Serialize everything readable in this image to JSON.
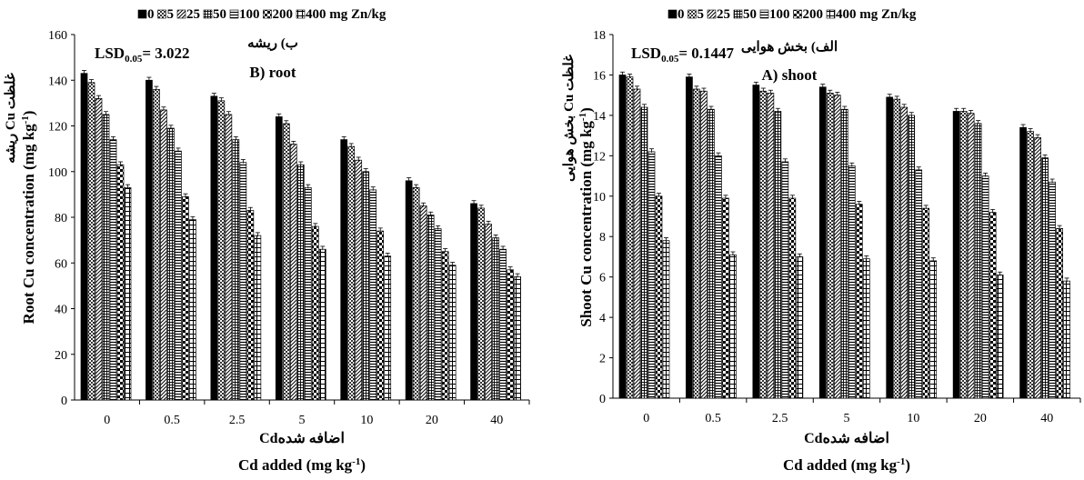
{
  "legend_labels": [
    "0",
    "5",
    "25",
    "50",
    "100",
    "200",
    "400 mg Zn/kg"
  ],
  "chart_data": [
    {
      "type": "bar",
      "panel_title_fa": "ب) ریشه",
      "panel_title_en": "B) root",
      "lsd_main": "LSD",
      "lsd_sub": "0.05",
      "lsd_value": "= 3.022",
      "ylabel_en": "Root Cu concentration (mg kg",
      "ylabel_en_sup": "-1",
      "ylabel_en_end": ")",
      "ylabel_fa": "غلظت Cu ریشه",
      "xlabel_fa": "اضافه شدهCd",
      "xlabel_en": "Cd added (mg kg",
      "xlabel_en_sup": "-1",
      "xlabel_en_end": ")",
      "categories": [
        "0",
        "0.5",
        "2.5",
        "5",
        "10",
        "20",
        "40"
      ],
      "ylim": [
        0,
        160
      ],
      "yticks": [
        "0",
        "20",
        "40",
        "60",
        "80",
        "100",
        "120",
        "140",
        "160"
      ],
      "series": [
        {
          "name": "0",
          "values": [
            143,
            140,
            133,
            124,
            114,
            96,
            86
          ]
        },
        {
          "name": "5",
          "values": [
            139,
            136,
            131,
            121,
            111,
            93,
            84
          ]
        },
        {
          "name": "25",
          "values": [
            132,
            127,
            125,
            112,
            105,
            85,
            77
          ]
        },
        {
          "name": "50",
          "values": [
            125,
            119,
            114,
            103,
            100,
            81,
            71
          ]
        },
        {
          "name": "100",
          "values": [
            114,
            109,
            104,
            93,
            92,
            75,
            66
          ]
        },
        {
          "name": "200",
          "values": [
            103,
            89,
            83,
            76,
            74,
            65,
            57
          ]
        },
        {
          "name": "400 mg Zn/kg",
          "values": [
            93,
            79,
            72,
            66,
            63,
            59,
            54
          ]
        }
      ]
    },
    {
      "type": "bar",
      "panel_title_fa": "الف) بخش هوایی",
      "panel_title_en": "A) shoot",
      "lsd_main": "LSD",
      "lsd_sub": "0.05",
      "lsd_value": "= 0.1447",
      "ylabel_en": "Shoot Cu concentration (mg kg",
      "ylabel_en_sup": "-1",
      "ylabel_en_end": ")",
      "ylabel_fa": "غلظت Cu بخش هوایی",
      "xlabel_fa": "اضافه شدهCd",
      "xlabel_en": "Cd added (mg kg",
      "xlabel_en_sup": "-1",
      "xlabel_en_end": ")",
      "categories": [
        "0",
        "0.5",
        "2.5",
        "5",
        "10",
        "20",
        "40"
      ],
      "ylim": [
        0,
        18
      ],
      "yticks": [
        "0",
        "2",
        "4",
        "6",
        "8",
        "10",
        "12",
        "14",
        "16",
        "18"
      ],
      "series": [
        {
          "name": "0",
          "values": [
            16.0,
            15.9,
            15.5,
            15.4,
            14.9,
            14.2,
            13.4
          ]
        },
        {
          "name": "5",
          "values": [
            15.9,
            15.3,
            15.2,
            15.1,
            14.8,
            14.2,
            13.2
          ]
        },
        {
          "name": "25",
          "values": [
            15.3,
            15.2,
            15.1,
            15.0,
            14.4,
            14.1,
            12.9
          ]
        },
        {
          "name": "50",
          "values": [
            14.4,
            14.3,
            14.2,
            14.3,
            14.0,
            13.6,
            11.9
          ]
        },
        {
          "name": "100",
          "values": [
            12.2,
            12.0,
            11.7,
            11.5,
            11.3,
            11.0,
            10.7
          ]
        },
        {
          "name": "200",
          "values": [
            10.0,
            9.9,
            9.9,
            9.6,
            9.4,
            9.2,
            8.4
          ]
        },
        {
          "name": "400 mg Zn/kg",
          "values": [
            7.8,
            7.1,
            7.0,
            6.9,
            6.8,
            6.1,
            5.8
          ]
        }
      ]
    }
  ]
}
